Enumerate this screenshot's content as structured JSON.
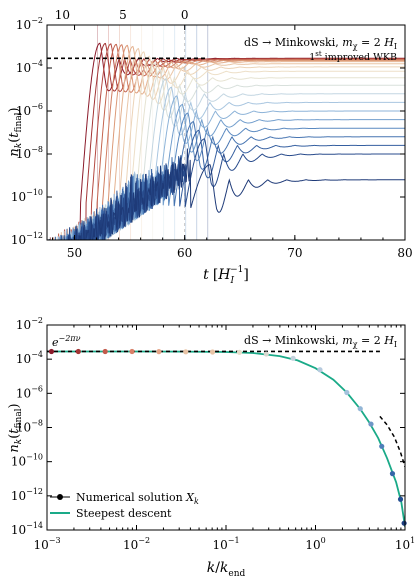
{
  "chart_data": [
    {
      "type": "line",
      "xlabel": "t [H_I^{-1}]",
      "xlabel_parts": {
        "main": "t",
        "bracket_open": "[",
        "unit": "H",
        "sub": "I",
        "sup": "−1",
        "bracket_close": "]"
      },
      "ylabel": "n_k(t_final)",
      "ylabel_parts": {
        "main": "n",
        "sub": "k",
        "paren_open": "(",
        "arg": "t",
        "arg_sub": "final",
        "paren_close": ")"
      },
      "xlim": [
        47.5,
        80
      ],
      "ylim_log10": [
        -12,
        -2
      ],
      "yscale": "log",
      "x_ticks": [
        "50",
        "60",
        "70",
        "80"
      ],
      "x_tick_values": [
        50,
        60,
        70,
        80
      ],
      "y_ticks": [
        {
          "base": "10",
          "exp": "−2",
          "value": -2
        },
        {
          "base": "10",
          "exp": "−4",
          "value": -4
        },
        {
          "base": "10",
          "exp": "−6",
          "value": -6
        },
        {
          "base": "10",
          "exp": "−8",
          "value": -8
        },
        {
          "base": "10",
          "exp": "−10",
          "value": -10
        },
        {
          "base": "10",
          "exp": "−12",
          "value": -12
        }
      ],
      "top_axis_ticks": [
        "10",
        "5",
        "0"
      ],
      "top_axis_tick_positions_t": [
        48.9,
        54.4,
        60.0
      ],
      "annotation": "dS → Minkowski, m_χ = 2 H_I",
      "annotation_parts": {
        "text": "dS → Minkowski, ",
        "m": "m",
        "sub": "χ",
        "rest": " = 2 ",
        "H": "H",
        "Hsub": "I"
      },
      "reference_label": "1st improved WKB",
      "reference_label_parts": {
        "num": "1",
        "sup": "st",
        "rest": " improved WKB"
      },
      "reference_level_log10": -3.55,
      "grid": false,
      "series": [
        {
          "t_start": 50.5,
          "plateau_log10": -3.55,
          "color": "#8b1a2a"
        },
        {
          "t_start": 51.0,
          "plateau_log10": -3.56,
          "color": "#a33535"
        },
        {
          "t_start": 51.5,
          "plateau_log10": -3.58,
          "color": "#b54a42"
        },
        {
          "t_start": 52.0,
          "plateau_log10": -3.6,
          "color": "#c4654f"
        },
        {
          "t_start": 52.5,
          "plateau_log10": -3.62,
          "color": "#d17f62"
        },
        {
          "t_start": 53.0,
          "plateau_log10": -3.65,
          "color": "#dc9a78"
        },
        {
          "t_start": 53.5,
          "plateau_log10": -3.7,
          "color": "#e4b18f"
        },
        {
          "t_start": 54.0,
          "plateau_log10": -3.8,
          "color": "#e9c5a6"
        },
        {
          "t_start": 54.5,
          "plateau_log10": -3.95,
          "color": "#ecd4b8"
        },
        {
          "t_start": 55.0,
          "plateau_log10": -4.15,
          "color": "#eddfc8"
        },
        {
          "t_start": 55.5,
          "plateau_log10": -4.45,
          "color": "#e6e3d2"
        },
        {
          "t_start": 56.0,
          "plateau_log10": -4.8,
          "color": "#d8e0dc"
        },
        {
          "t_start": 56.5,
          "plateau_log10": -5.2,
          "color": "#c3d6e2"
        },
        {
          "t_start": 57.0,
          "plateau_log10": -5.6,
          "color": "#a9c6e0"
        },
        {
          "t_start": 57.5,
          "plateau_log10": -6.0,
          "color": "#8db3d8"
        },
        {
          "t_start": 58.0,
          "plateau_log10": -6.4,
          "color": "#729ecd"
        },
        {
          "t_start": 58.5,
          "plateau_log10": -6.8,
          "color": "#5a89c0"
        },
        {
          "t_start": 59.0,
          "plateau_log10": -7.2,
          "color": "#4674b1"
        },
        {
          "t_start": 59.5,
          "plateau_log10": -7.6,
          "color": "#355fa0"
        },
        {
          "t_start": 60.0,
          "plateau_log10": -8.0,
          "color": "#284b8c"
        },
        {
          "t_start": 60.5,
          "plateau_log10": -9.2,
          "color": "#1e3a78"
        }
      ]
    },
    {
      "type": "line",
      "xlabel": "k/k_end",
      "xlabel_parts": {
        "k1": "k",
        "slash": "/",
        "k2": "k",
        "sub": "end"
      },
      "ylabel": "n_k(t_final)",
      "ylabel_parts": {
        "main": "n",
        "sub": "k",
        "paren_open": "(",
        "arg": "t",
        "arg_sub": "final",
        "paren_close": ")"
      },
      "xscale": "log",
      "yscale": "log",
      "xlim_log10": [
        -3,
        1
      ],
      "ylim_log10": [
        -14,
        -2
      ],
      "x_ticks": [
        {
          "base": "10",
          "exp": "−3",
          "value": -3
        },
        {
          "base": "10",
          "exp": "−2",
          "value": -2
        },
        {
          "base": "10",
          "exp": "−1",
          "value": -1
        },
        {
          "base": "10",
          "exp": "0",
          "value": 0
        },
        {
          "base": "10",
          "exp": "1",
          "value": 1
        }
      ],
      "y_ticks": [
        {
          "base": "10",
          "exp": "−2",
          "value": -2
        },
        {
          "base": "10",
          "exp": "−4",
          "value": -4
        },
        {
          "base": "10",
          "exp": "−6",
          "value": -6
        },
        {
          "base": "10",
          "exp": "−8",
          "value": -8
        },
        {
          "base": "10",
          "exp": "−10",
          "value": -10
        },
        {
          "base": "10",
          "exp": "−12",
          "value": -12
        },
        {
          "base": "10",
          "exp": "−14",
          "value": -14
        }
      ],
      "annotation": "dS → Minkowski, m_χ = 2 H_I",
      "annotation_parts": {
        "text": "dS → Minkowski, ",
        "m": "m",
        "sub": "χ",
        "rest": " = 2 ",
        "H": "H",
        "Hsub": "I"
      },
      "reference_label": "e^{−2πν}",
      "reference_label_parts": {
        "base": "e",
        "exp": "−2πν"
      },
      "reference_level_log10": -3.55,
      "grid": false,
      "legend_position": "bottom-left",
      "legend": [
        {
          "label": "Numerical solution X_k",
          "label_text": "Numerical solution ",
          "label_var": "X",
          "label_sub": "k",
          "marker": "dot-line",
          "color": "#000000"
        },
        {
          "label": "Steepest descent",
          "marker": "line",
          "color": "#1aaa88"
        }
      ],
      "steepest_descent": {
        "color": "#1aaa88",
        "points": [
          {
            "log10_k": -3.0,
            "log10_n": -3.55
          },
          {
            "log10_k": -2.0,
            "log10_n": -3.55
          },
          {
            "log10_k": -1.5,
            "log10_n": -3.56
          },
          {
            "log10_k": -1.0,
            "log10_n": -3.58
          },
          {
            "log10_k": -0.7,
            "log10_n": -3.64
          },
          {
            "log10_k": -0.4,
            "log10_n": -3.82
          },
          {
            "log10_k": -0.2,
            "log10_n": -4.07
          },
          {
            "log10_k": 0.0,
            "log10_n": -4.53
          },
          {
            "log10_k": 0.2,
            "log10_n": -5.2
          },
          {
            "log10_k": 0.35,
            "log10_n": -5.95
          },
          {
            "log10_k": 0.5,
            "log10_n": -6.92
          },
          {
            "log10_k": 0.6,
            "log10_n": -7.7
          },
          {
            "log10_k": 0.7,
            "log10_n": -8.62
          },
          {
            "log10_k": 0.8,
            "log10_n": -9.8
          },
          {
            "log10_k": 0.9,
            "log10_n": -11.2
          },
          {
            "log10_k": 0.96,
            "log10_n": -12.4
          },
          {
            "log10_k": 1.0,
            "log10_n": -13.8
          }
        ]
      },
      "large_k_asymptote": {
        "color": "#000000",
        "dashed": true,
        "points": [
          {
            "log10_k": 0.72,
            "log10_n": -7.35
          },
          {
            "log10_k": 0.8,
            "log10_n": -7.85
          },
          {
            "log10_k": 0.88,
            "log10_n": -8.55
          },
          {
            "log10_k": 0.95,
            "log10_n": -9.45
          },
          {
            "log10_k": 1.0,
            "log10_n": -10.3
          }
        ]
      },
      "numerical_points": [
        {
          "log10_k": -2.95,
          "log10_n": -3.55,
          "color": "#8b1a2a"
        },
        {
          "log10_k": -2.65,
          "log10_n": -3.55,
          "color": "#a33535"
        },
        {
          "log10_k": -2.35,
          "log10_n": -3.55,
          "color": "#c25a4b"
        },
        {
          "log10_k": -2.05,
          "log10_n": -3.55,
          "color": "#d88068"
        },
        {
          "log10_k": -1.75,
          "log10_n": -3.56,
          "color": "#e4a487"
        },
        {
          "log10_k": -1.45,
          "log10_n": -3.57,
          "color": "#e9c4a6"
        },
        {
          "log10_k": -1.15,
          "log10_n": -3.58,
          "color": "#e9c4a6"
        },
        {
          "log10_k": -0.85,
          "log10_n": -3.6,
          "color": "#e6dcc8"
        },
        {
          "log10_k": -0.55,
          "log10_n": -3.7,
          "color": "#d8d8d0"
        },
        {
          "log10_k": -0.25,
          "log10_n": -3.95,
          "color": "#c3d2dd"
        },
        {
          "log10_k": 0.05,
          "log10_n": -4.62,
          "color": "#b6cade"
        },
        {
          "log10_k": 0.35,
          "log10_n": -5.95,
          "color": "#a4c2dc"
        },
        {
          "log10_k": 0.5,
          "log10_n": -6.9,
          "color": "#93b6d6"
        },
        {
          "log10_k": 0.62,
          "log10_n": -7.8,
          "color": "#6f97c6"
        },
        {
          "log10_k": 0.74,
          "log10_n": -9.1,
          "color": "#4f7fb9"
        },
        {
          "log10_k": 0.86,
          "log10_n": -10.7,
          "color": "#3566a8"
        },
        {
          "log10_k": 0.95,
          "log10_n": -12.2,
          "color": "#234e92"
        },
        {
          "log10_k": 0.99,
          "log10_n": -13.6,
          "color": "#1d3f80"
        }
      ]
    }
  ]
}
